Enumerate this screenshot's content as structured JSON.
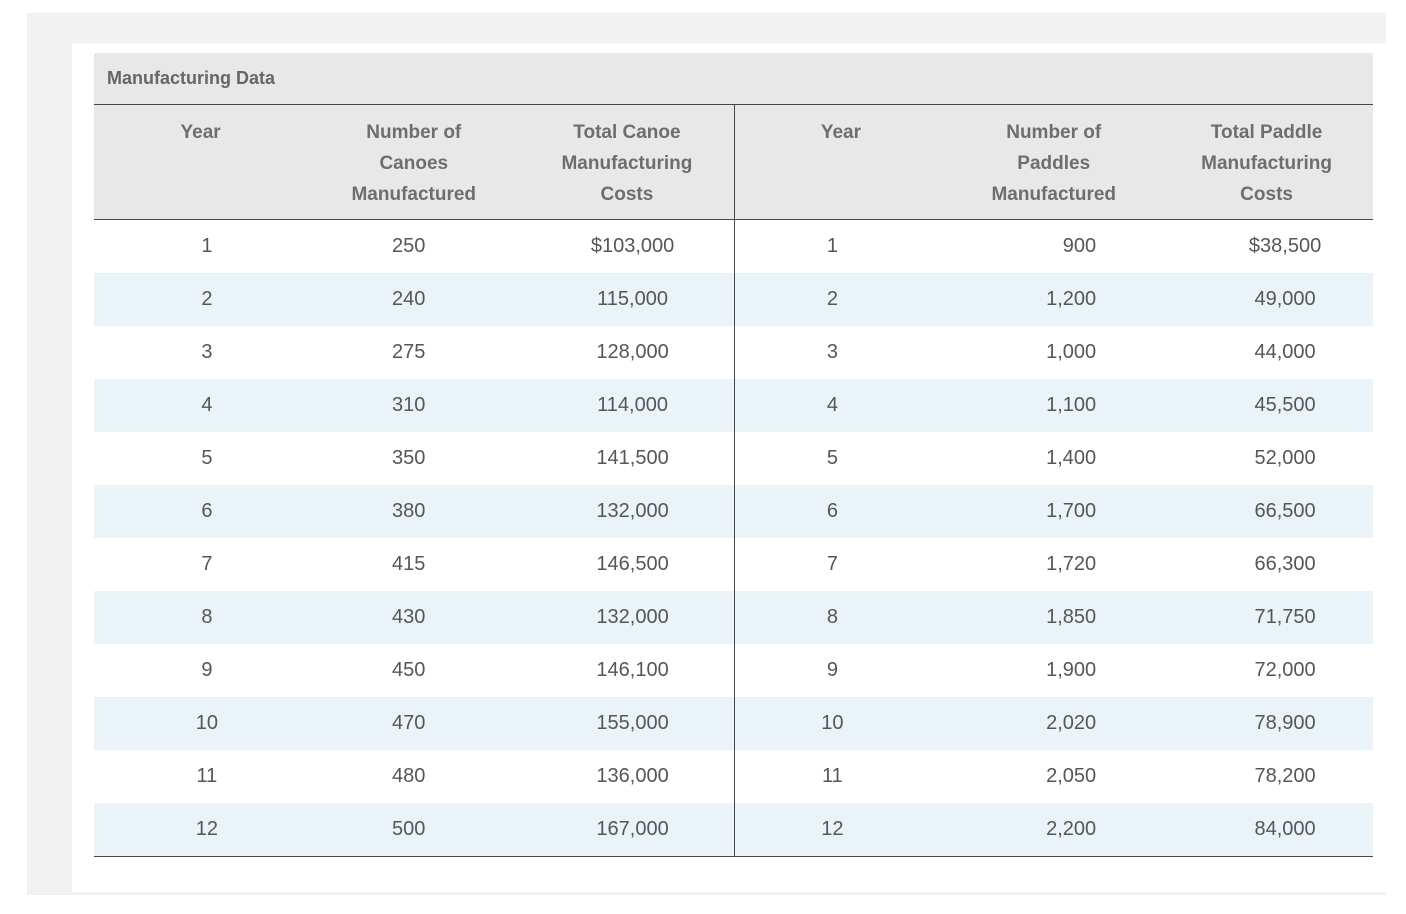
{
  "title": "Manufacturing Data",
  "tables": [
    {
      "name": "canoes",
      "header_lines": [
        [
          "Year"
        ],
        [
          "Number of",
          "Canoes",
          "Manufactured"
        ],
        [
          "Total Canoe",
          "Manufacturing",
          "Costs"
        ]
      ],
      "rows": [
        [
          "1",
          "250",
          "$103,000"
        ],
        [
          "2",
          "240",
          "115,000"
        ],
        [
          "3",
          "275",
          "128,000"
        ],
        [
          "4",
          "310",
          "114,000"
        ],
        [
          "5",
          "350",
          "141,500"
        ],
        [
          "6",
          "380",
          "132,000"
        ],
        [
          "7",
          "415",
          "146,500"
        ],
        [
          "8",
          "430",
          "132,000"
        ],
        [
          "9",
          "450",
          "146,100"
        ],
        [
          "10",
          "470",
          "155,000"
        ],
        [
          "11",
          "480",
          "136,000"
        ],
        [
          "12",
          "500",
          "167,000"
        ]
      ]
    },
    {
      "name": "paddles",
      "header_lines": [
        [
          "Year"
        ],
        [
          "Number of",
          "Paddles",
          "Manufactured"
        ],
        [
          "Total Paddle",
          "Manufacturing",
          "Costs"
        ]
      ],
      "rows": [
        [
          "1",
          "900",
          "$38,500"
        ],
        [
          "2",
          "1,200",
          "49,000"
        ],
        [
          "3",
          "1,000",
          "44,000"
        ],
        [
          "4",
          "1,100",
          "45,500"
        ],
        [
          "5",
          "1,400",
          "52,000"
        ],
        [
          "6",
          "1,700",
          "66,500"
        ],
        [
          "7",
          "1,720",
          "66,300"
        ],
        [
          "8",
          "1,850",
          "71,750"
        ],
        [
          "9",
          "1,900",
          "72,000"
        ],
        [
          "10",
          "2,020",
          "78,900"
        ],
        [
          "11",
          "2,050",
          "78,200"
        ],
        [
          "12",
          "2,200",
          "84,000"
        ]
      ]
    }
  ],
  "chart_data": {
    "type": "table",
    "title": "Manufacturing Data",
    "tables": [
      {
        "columns": [
          "Year",
          "Number of Canoes Manufactured",
          "Total Canoe Manufacturing Costs"
        ],
        "years": [
          1,
          2,
          3,
          4,
          5,
          6,
          7,
          8,
          9,
          10,
          11,
          12
        ],
        "canoes_manufactured": [
          250,
          240,
          275,
          310,
          350,
          380,
          415,
          430,
          450,
          470,
          480,
          500
        ],
        "total_canoe_manufacturing_costs_usd": [
          103000,
          115000,
          128000,
          114000,
          141500,
          132000,
          146500,
          132000,
          146100,
          155000,
          136000,
          167000
        ]
      },
      {
        "columns": [
          "Year",
          "Number of Paddles Manufactured",
          "Total Paddle Manufacturing Costs"
        ],
        "years": [
          1,
          2,
          3,
          4,
          5,
          6,
          7,
          8,
          9,
          10,
          11,
          12
        ],
        "paddles_manufactured": [
          900,
          1200,
          1000,
          1100,
          1400,
          1700,
          1720,
          1850,
          1900,
          2020,
          2050,
          2200
        ],
        "total_paddle_manufacturing_costs_usd": [
          38500,
          49000,
          44000,
          45500,
          52000,
          66500,
          66300,
          71750,
          72000,
          78900,
          78200,
          84000
        ]
      }
    ]
  },
  "colors": {
    "page_bg": "#ffffff",
    "panel_bg": "#f1f1f1",
    "card_bg": "#ffffff",
    "header_bg": "#e8e8e8",
    "alt_row_bg": "#e9f3f8",
    "border": "#474747",
    "title_text": "#666666",
    "header_text": "#6e6e6e",
    "value_text": "#55565a"
  }
}
